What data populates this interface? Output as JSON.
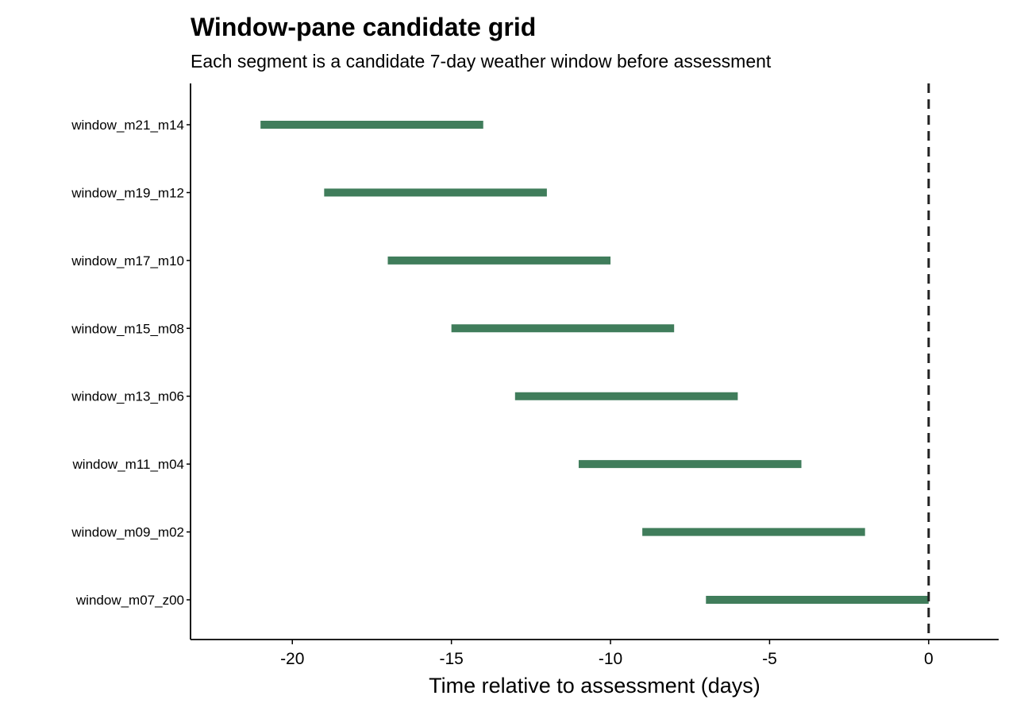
{
  "chart_data": {
    "type": "segment",
    "title": "Window-pane candidate grid",
    "subtitle": "Each segment is a candidate 7-day weather window before assessment",
    "xlabel": "Time relative to assessment (days)",
    "ylabel": "",
    "xlim": [
      -23.2,
      2.2
    ],
    "xticks": [
      -20,
      -15,
      -10,
      -5,
      0
    ],
    "xtick_labels": [
      "-20",
      "-15",
      "-10",
      "-5",
      "0"
    ],
    "reference_line": {
      "x": 0,
      "style": "dashed",
      "color": "#222222"
    },
    "segment_color": "#407d5b",
    "grid": false,
    "legend": "none",
    "categories": [
      "window_m21_m14",
      "window_m19_m12",
      "window_m17_m10",
      "window_m15_m08",
      "window_m13_m06",
      "window_m11_m04",
      "window_m09_m02",
      "window_m07_z00"
    ],
    "segments": [
      {
        "label": "window_m21_m14",
        "start": -21,
        "end": -14
      },
      {
        "label": "window_m19_m12",
        "start": -19,
        "end": -12
      },
      {
        "label": "window_m17_m10",
        "start": -17,
        "end": -10
      },
      {
        "label": "window_m15_m08",
        "start": -15,
        "end": -8
      },
      {
        "label": "window_m13_m06",
        "start": -13,
        "end": -6
      },
      {
        "label": "window_m11_m04",
        "start": -11,
        "end": -4
      },
      {
        "label": "window_m09_m02",
        "start": -9,
        "end": -2
      },
      {
        "label": "window_m07_z00",
        "start": -7,
        "end": 0
      }
    ]
  }
}
